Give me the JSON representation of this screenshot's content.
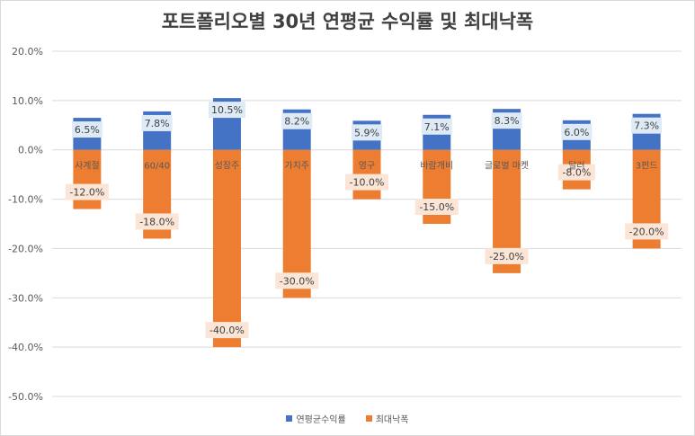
{
  "chart_data": {
    "type": "bar",
    "title": "포트폴리오별 30년 연평균 수익률 및 최대낙폭",
    "categories": [
      "사계절",
      "60/40",
      "성장주",
      "가치주",
      "영구",
      "바람개비",
      "글로벌 마켓",
      "달러",
      "3펀드"
    ],
    "series": [
      {
        "name": "연평균수익률",
        "color": "#4472C4",
        "values": [
          6.5,
          7.8,
          10.5,
          8.2,
          5.9,
          7.1,
          8.3,
          6.0,
          7.3
        ],
        "labels": [
          "6.5%",
          "7.8%",
          "10.5%",
          "8.2%",
          "5.9%",
          "7.1%",
          "8.3%",
          "6.0%",
          "7.3%"
        ]
      },
      {
        "name": "최대낙폭",
        "color": "#ED7D31",
        "values": [
          -12.0,
          -18.0,
          -40.0,
          -30.0,
          -10.0,
          -15.0,
          -25.0,
          -8.0,
          -20.0
        ],
        "labels": [
          "-12.0%",
          "-18.0%",
          "-40.0%",
          "-30.0%",
          "-10.0%",
          "-15.0%",
          "-25.0%",
          "-8.0%",
          "-20.0%"
        ]
      }
    ],
    "ylim": [
      -50,
      20
    ],
    "y_ticks": [
      "20.0%",
      "10.0%",
      "0.0%",
      "-10.0%",
      "-20.0%",
      "-30.0%",
      "-40.0%",
      "-50.0%"
    ],
    "y_tick_values": [
      20,
      10,
      0,
      -10,
      -20,
      -30,
      -40,
      -50
    ],
    "grid": true,
    "legend_position": "bottom"
  }
}
